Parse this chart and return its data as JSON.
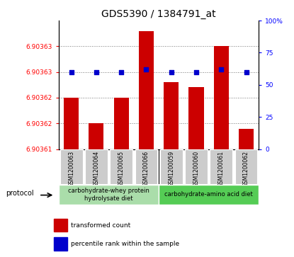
{
  "title": "GDS5390 / 1384791_at",
  "samples": [
    "GSM1200063",
    "GSM1200064",
    "GSM1200065",
    "GSM1200066",
    "GSM1200059",
    "GSM1200060",
    "GSM1200061",
    "GSM1200062"
  ],
  "bar_values": [
    6.90362,
    6.903615,
    6.90362,
    6.903633,
    6.903623,
    6.903622,
    6.90363,
    6.903614
  ],
  "percentile_values": [
    60,
    60,
    60,
    62,
    60,
    60,
    62,
    60
  ],
  "ymin": 6.90361,
  "ymax": 6.903635,
  "yright_min": 0,
  "yright_max": 100,
  "left_ytick_positions": [
    6.90361,
    6.903615,
    6.90362,
    6.903625,
    6.90363
  ],
  "left_ytick_labels": [
    "6.90361",
    "6.90362",
    "6.90362",
    "6.90363",
    "6.90363"
  ],
  "yticks_right": [
    0,
    25,
    50,
    75,
    100
  ],
  "yticks_right_labels": [
    "0",
    "25",
    "50",
    "75",
    "100%"
  ],
  "bar_color": "#cc0000",
  "dot_color": "#0000cc",
  "group1_label": "carbohydrate-whey protein\nhydrolysate diet",
  "group2_label": "carbohydrate-amino acid diet",
  "group1_color": "#aaddaa",
  "group2_color": "#55cc55",
  "legend_bar_label": "transformed count",
  "legend_dot_label": "percentile rank within the sample",
  "protocol_label": "protocol",
  "background_color": "#ffffff",
  "grid_color": "#777777",
  "title_fontsize": 10,
  "bar_width": 0.6,
  "sample_bg_color": "#cccccc"
}
